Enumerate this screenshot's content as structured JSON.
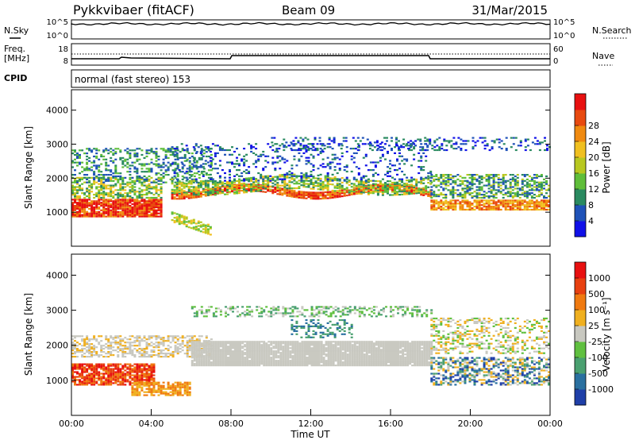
{
  "header": {
    "title": "Pykkvibaer (fitACF)",
    "beam": "Beam 09",
    "date": "31/Mar/2015"
  },
  "noise_panel": {
    "left_label": "N.Sky",
    "right_label": "N.Search",
    "left_ticks": [
      "10^5",
      "10^0"
    ],
    "right_ticks": [
      "10^5",
      "10^0"
    ]
  },
  "freq_panel": {
    "left_label_1": "Freq.",
    "left_label_2": "[MHz]",
    "left_ticks": [
      "18",
      "8"
    ],
    "right_label": "Nave",
    "right_ticks": [
      "60",
      "0"
    ]
  },
  "cpid_panel": {
    "label": "CPID",
    "text": "normal (fast stereo) 153"
  },
  "chart_data": [
    {
      "type": "heatmap",
      "title": "",
      "xlabel": "",
      "ylabel": "Slant Range [km]",
      "y_ticks": [
        "1000",
        "2000",
        "3000",
        "4000"
      ],
      "ylim": [
        0,
        4600
      ],
      "xlim_hours": [
        0,
        24
      ],
      "colorbar_label": "Power [dB]",
      "colorbar_ticks": [
        "4",
        "8",
        "12",
        "16",
        "20",
        "24",
        "28"
      ],
      "colors": [
        "#1010e8",
        "#1f52b8",
        "#2a8a60",
        "#5fbe3a",
        "#b8c820",
        "#f0c020",
        "#f08a10",
        "#e84a10",
        "#e81010"
      ]
    },
    {
      "type": "heatmap",
      "title": "",
      "xlabel": "Time UT",
      "ylabel": "Slant Range [km]",
      "y_ticks": [
        "1000",
        "2000",
        "3000",
        "4000"
      ],
      "ylim": [
        0,
        4600
      ],
      "x_ticks": [
        "00:00",
        "04:00",
        "08:00",
        "12:00",
        "16:00",
        "20:00",
        "00:00"
      ],
      "colorbar_label": "Velocity [m s⁻¹]",
      "colorbar_ticks": [
        "1000",
        "500",
        "100",
        "25",
        "-25",
        "-100",
        "-500",
        "-1000"
      ],
      "colors": [
        "#1f3fa8",
        "#2a70a0",
        "#4aa070",
        "#60c040",
        "#c8c8c0",
        "#f0b020",
        "#f07a10",
        "#e84010",
        "#e81010"
      ]
    }
  ]
}
